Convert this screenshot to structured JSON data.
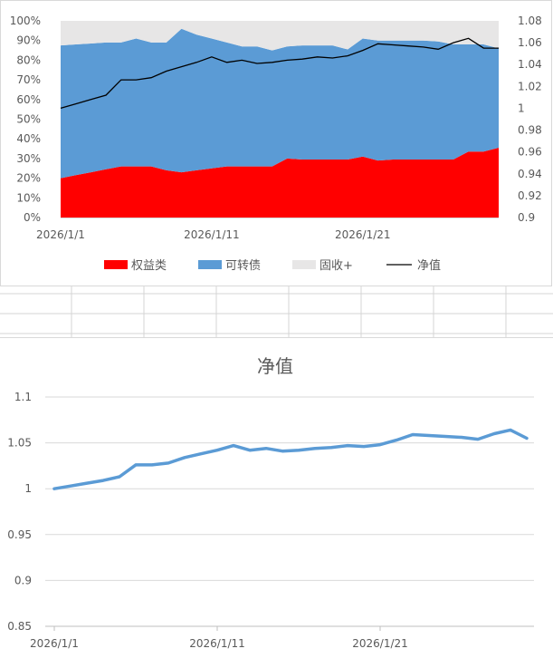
{
  "chart_data": [
    {
      "type": "area",
      "stacked": true,
      "percent": true,
      "x": [
        "2026/1/1",
        "2026/1/2",
        "2026/1/3",
        "2026/1/4",
        "2026/1/5",
        "2026/1/6",
        "2026/1/7",
        "2026/1/8",
        "2026/1/9",
        "2026/1/10",
        "2026/1/11",
        "2026/1/12",
        "2026/1/13",
        "2026/1/14",
        "2026/1/15",
        "2026/1/16",
        "2026/1/17",
        "2026/1/18",
        "2026/1/19",
        "2026/1/20",
        "2026/1/21",
        "2026/1/22",
        "2026/1/23",
        "2026/1/24",
        "2026/1/25",
        "2026/1/26",
        "2026/1/27",
        "2026/1/28",
        "2026/1/29",
        "2026/1/30"
      ],
      "x_tick_labels": [
        "2026/1/1",
        "2026/1/11",
        "2026/1/21"
      ],
      "series": [
        {
          "name": "权益类",
          "color": "#ff0000",
          "values": [
            20,
            21.5,
            23,
            24.5,
            26,
            26,
            26,
            24,
            23,
            24,
            25,
            26,
            26,
            26,
            26,
            30,
            29.5,
            29.5,
            29.5,
            29.5,
            31,
            29,
            29.5,
            29.5,
            29.5,
            29.5,
            29.5,
            33.5,
            33.5,
            35.5
          ]
        },
        {
          "name": "可转债",
          "color": "#5b9bd5",
          "values": [
            67.5,
            66.5,
            65.5,
            64.5,
            63,
            65,
            63,
            65,
            73,
            69,
            66,
            63,
            61,
            61,
            59,
            57,
            58,
            58,
            58,
            56,
            60,
            61,
            60.5,
            60.5,
            60.5,
            60,
            58.5,
            54.5,
            54.5,
            50.5
          ]
        },
        {
          "name": "固收+",
          "color": "#e7e6e6",
          "values": [
            12.5,
            12,
            11.5,
            11,
            11,
            9,
            11,
            11,
            4,
            7,
            9,
            11,
            13,
            13,
            15,
            13,
            12.5,
            12.5,
            12.5,
            14.5,
            9,
            10,
            10,
            10,
            10,
            10.5,
            12,
            12,
            12,
            14
          ]
        }
      ],
      "line": {
        "name": "净值",
        "color": "#000000",
        "values": [
          1.0,
          1.004,
          1.008,
          1.012,
          1.026,
          1.026,
          1.028,
          1.034,
          1.038,
          1.042,
          1.047,
          1.042,
          1.044,
          1.041,
          1.042,
          1.044,
          1.045,
          1.047,
          1.046,
          1.048,
          1.053,
          1.059,
          1.058,
          1.057,
          1.056,
          1.054,
          1.06,
          1.064,
          1.055,
          1.055
        ]
      },
      "y_left": {
        "ylim": [
          0,
          100
        ],
        "ticks": [
          "0%",
          "10%",
          "20%",
          "30%",
          "40%",
          "50%",
          "60%",
          "70%",
          "80%",
          "90%",
          "100%"
        ]
      },
      "y_right": {
        "ylim": [
          0.9,
          1.08
        ],
        "ticks": [
          "0.9",
          "0.92",
          "0.94",
          "0.96",
          "0.98",
          "1",
          "1.02",
          "1.04",
          "1.06",
          "1.08"
        ]
      },
      "legend": {
        "placement": "bottom",
        "items": [
          {
            "name": "权益类",
            "kind": "area",
            "color": "#ff0000"
          },
          {
            "name": "可转债",
            "kind": "area",
            "color": "#5b9bd5"
          },
          {
            "name": "固收+",
            "kind": "area",
            "color": "#e7e6e6"
          },
          {
            "name": "净值",
            "kind": "line",
            "color": "#000000"
          }
        ]
      },
      "grid": false
    },
    {
      "type": "line",
      "title": "净值",
      "x": [
        "2026/1/1",
        "2026/1/2",
        "2026/1/3",
        "2026/1/4",
        "2026/1/5",
        "2026/1/6",
        "2026/1/7",
        "2026/1/8",
        "2026/1/9",
        "2026/1/10",
        "2026/1/11",
        "2026/1/12",
        "2026/1/13",
        "2026/1/14",
        "2026/1/15",
        "2026/1/16",
        "2026/1/17",
        "2026/1/18",
        "2026/1/19",
        "2026/1/20",
        "2026/1/21",
        "2026/1/22",
        "2026/1/23",
        "2026/1/24",
        "2026/1/25",
        "2026/1/26",
        "2026/1/27",
        "2026/1/28",
        "2026/1/29",
        "2026/1/30"
      ],
      "x_tick_labels": [
        "2026/1/1",
        "2026/1/11",
        "2026/1/21"
      ],
      "series": [
        {
          "color": "#5b9bd5",
          "values": [
            1.0,
            1.003,
            1.006,
            1.009,
            1.013,
            1.026,
            1.026,
            1.028,
            1.034,
            1.038,
            1.042,
            1.047,
            1.042,
            1.044,
            1.041,
            1.042,
            1.044,
            1.045,
            1.047,
            1.046,
            1.048,
            1.053,
            1.059,
            1.058,
            1.057,
            1.056,
            1.054,
            1.06,
            1.064,
            1.055
          ]
        }
      ],
      "ylim": [
        0.85,
        1.1
      ],
      "y_ticks": [
        "0.85",
        "0.9",
        "0.95",
        "1",
        "1.05",
        "1.1"
      ],
      "grid": true,
      "legend": null
    }
  ]
}
